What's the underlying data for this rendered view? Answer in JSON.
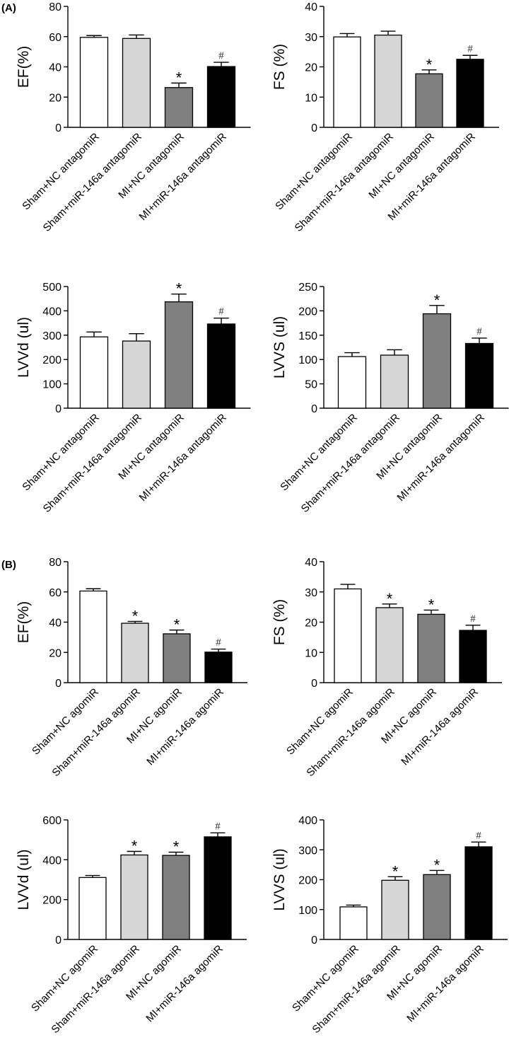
{
  "figure": {
    "panel_labels": [
      "(A)",
      "(B)"
    ]
  },
  "chart_data": [
    {
      "type": "bar",
      "panel": "(A)",
      "ylabel": "EF(%)",
      "ylim": [
        0,
        80
      ],
      "yticks": [
        0,
        20,
        40,
        60,
        80
      ],
      "categories": [
        "Sham+NC antagomiR",
        "Sham+miR-146a antagomiR",
        "MI+NC antagomiR",
        "MI+miR-146a antagomiR"
      ],
      "values": [
        59.5,
        58.8,
        26.3,
        40.2
      ],
      "errors": [
        1.2,
        2.3,
        3.0,
        2.8
      ],
      "markers": [
        "",
        "",
        "*",
        "#"
      ],
      "colors": [
        "#ffffff",
        "#d6d6d6",
        "#808080",
        "#000000"
      ]
    },
    {
      "type": "bar",
      "panel": "(A)",
      "ylabel": "FS (%)",
      "ylim": [
        0,
        40
      ],
      "yticks": [
        0,
        10,
        20,
        30,
        40
      ],
      "categories": [
        "Sham+NC antagomiR",
        "Sham+miR-146a antagomiR",
        "MI+NC antagomiR",
        "MI+miR-146a antagomiR"
      ],
      "values": [
        29.9,
        30.5,
        17.7,
        22.5
      ],
      "errors": [
        1.1,
        1.3,
        1.3,
        1.3
      ],
      "markers": [
        "",
        "",
        "*",
        "#"
      ],
      "colors": [
        "#ffffff",
        "#d6d6d6",
        "#808080",
        "#000000"
      ]
    },
    {
      "type": "bar",
      "panel": "(A)",
      "ylabel": "LVVd (ul)",
      "ylim": [
        0,
        500
      ],
      "yticks": [
        0,
        100,
        200,
        300,
        400,
        500
      ],
      "categories": [
        "Sham+NC antagomiR",
        "Sham+miR-146a antagomiR",
        "MI+NC antagomiR",
        "MI+miR-146a antagomiR"
      ],
      "values": [
        293,
        276,
        437,
        346
      ],
      "errors": [
        20,
        30,
        32,
        24
      ],
      "markers": [
        "",
        "",
        "*",
        "#"
      ],
      "colors": [
        "#ffffff",
        "#d6d6d6",
        "#808080",
        "#000000"
      ]
    },
    {
      "type": "bar",
      "panel": "(A)",
      "ylabel": "LVVS (ul)",
      "ylim": [
        0,
        250
      ],
      "yticks": [
        0,
        50,
        100,
        150,
        200,
        250
      ],
      "categories": [
        "Sham+NC antagomiR",
        "Sham+miR-146a antagomiR",
        "MI+NC antagomiR",
        "MI+miR-146a antagomiR"
      ],
      "values": [
        106,
        109,
        194,
        133
      ],
      "errors": [
        8,
        11,
        17,
        11
      ],
      "markers": [
        "",
        "",
        "*",
        "#"
      ],
      "colors": [
        "#ffffff",
        "#d6d6d6",
        "#808080",
        "#000000"
      ]
    },
    {
      "type": "bar",
      "panel": "(B)",
      "ylabel": "EF(%)",
      "ylim": [
        0,
        80
      ],
      "yticks": [
        0,
        20,
        40,
        60,
        80
      ],
      "categories": [
        "Sham+NC agomiR",
        "Sham+miR-146a agomiR",
        "MI+NC agomiR",
        "MI+miR-146a agomiR"
      ],
      "values": [
        60.6,
        39.3,
        32.3,
        20.2
      ],
      "errors": [
        1.5,
        1.2,
        2.5,
        2.0
      ],
      "markers": [
        "",
        "*",
        "*",
        "#"
      ],
      "colors": [
        "#ffffff",
        "#d6d6d6",
        "#808080",
        "#000000"
      ]
    },
    {
      "type": "bar",
      "panel": "(B)",
      "ylabel": "FS (%)",
      "ylim": [
        0,
        40
      ],
      "yticks": [
        0,
        10,
        20,
        30,
        40
      ],
      "categories": [
        "Sham+NC agomiR",
        "Sham+miR-146a agomiR",
        "MI+NC agomiR",
        "MI+miR-146a agomiR"
      ],
      "values": [
        31.0,
        24.8,
        22.6,
        17.3
      ],
      "errors": [
        1.5,
        1.2,
        1.4,
        1.7
      ],
      "markers": [
        "",
        "*",
        "*",
        "#"
      ],
      "colors": [
        "#ffffff",
        "#d6d6d6",
        "#808080",
        "#000000"
      ]
    },
    {
      "type": "bar",
      "panel": "(B)",
      "ylabel": "LVVd (ul)",
      "ylim": [
        0,
        600
      ],
      "yticks": [
        0,
        200,
        400,
        600
      ],
      "categories": [
        "Sham+NC agomiR",
        "Sham+miR-146a agomiR",
        "MI+NC agomiR",
        "MI+miR-146a agomiR"
      ],
      "values": [
        311,
        424,
        422,
        515
      ],
      "errors": [
        10,
        18,
        16,
        20
      ],
      "markers": [
        "",
        "*",
        "*",
        "#"
      ],
      "colors": [
        "#ffffff",
        "#d6d6d6",
        "#808080",
        "#000000"
      ]
    },
    {
      "type": "bar",
      "panel": "(B)",
      "ylabel": "LVVS (ul)",
      "ylim": [
        0,
        400
      ],
      "yticks": [
        0,
        100,
        200,
        300,
        400
      ],
      "categories": [
        "Sham+NC agomiR",
        "Sham+miR-146a agomiR",
        "MI+NC agomiR",
        "MI+miR-146a agomiR"
      ],
      "values": [
        109,
        198,
        217,
        310
      ],
      "errors": [
        6,
        12,
        14,
        16
      ],
      "markers": [
        "",
        "*",
        "*",
        "#"
      ],
      "colors": [
        "#ffffff",
        "#d6d6d6",
        "#808080",
        "#000000"
      ]
    }
  ]
}
